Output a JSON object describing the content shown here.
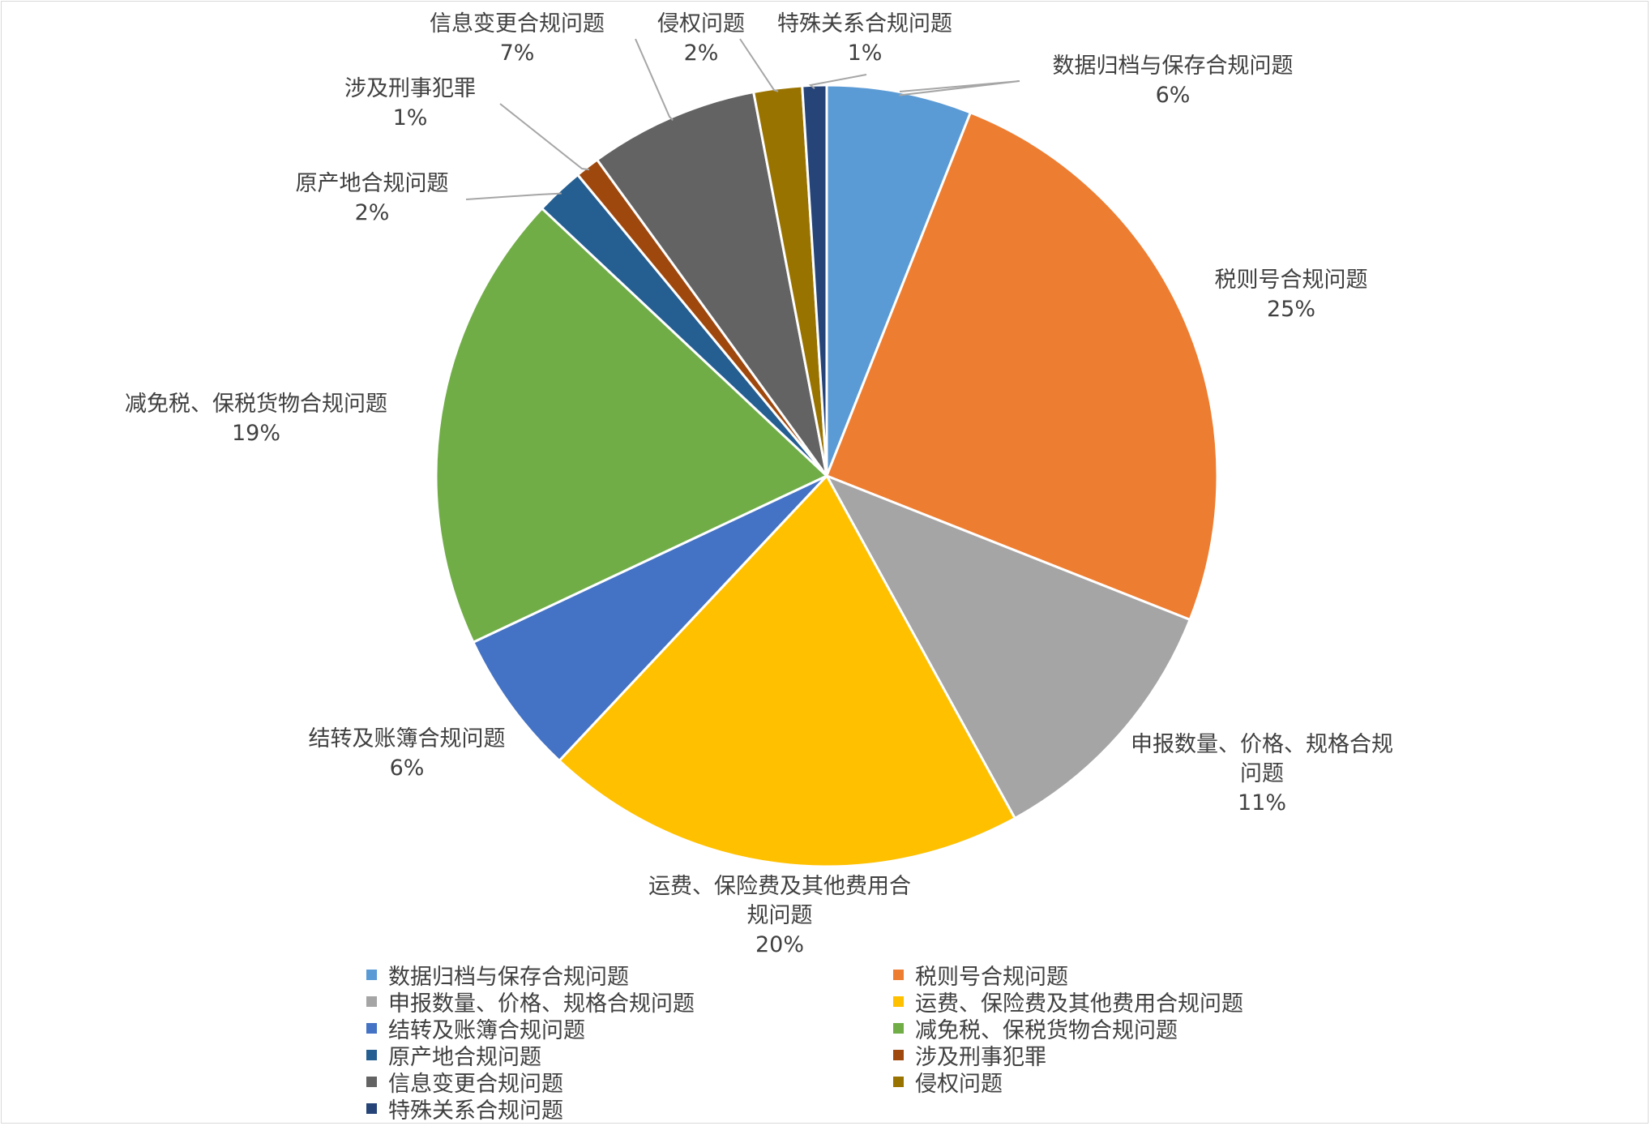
{
  "chart_data": {
    "type": "pie",
    "title": "",
    "slices": [
      {
        "name": "数据归档与保存合规问题",
        "label_lines": [
          "数据归档与保存合规问题"
        ],
        "value": 6,
        "pct_label": "6%",
        "color": "#5B9BD5"
      },
      {
        "name": "税则号合规问题",
        "label_lines": [
          "税则号合规问题"
        ],
        "value": 25,
        "pct_label": "25%",
        "color": "#ED7D31"
      },
      {
        "name": "申报数量、价格、规格合规问题",
        "label_lines": [
          "申报数量、价格、规格合规",
          "问题"
        ],
        "value": 11,
        "pct_label": "11%",
        "color": "#A5A5A5"
      },
      {
        "name": "运费、保险费及其他费用合规问题",
        "label_lines": [
          "运费、保险费及其他费用合",
          "规问题"
        ],
        "value": 20,
        "pct_label": "20%",
        "color": "#FFC000"
      },
      {
        "name": "结转及账簿合规问题",
        "label_lines": [
          "结转及账簿合规问题"
        ],
        "value": 6,
        "pct_label": "6%",
        "color": "#4472C4"
      },
      {
        "name": "减免税、保税货物合规问题",
        "label_lines": [
          "减免税、保税货物合规问题"
        ],
        "value": 19,
        "pct_label": "19%",
        "color": "#70AD47"
      },
      {
        "name": "原产地合规问题",
        "label_lines": [
          "原产地合规问题"
        ],
        "value": 2,
        "pct_label": "2%",
        "color": "#255E91"
      },
      {
        "name": "涉及刑事犯罪",
        "label_lines": [
          "涉及刑事犯罪"
        ],
        "value": 1,
        "pct_label": "1%",
        "color": "#9E480E"
      },
      {
        "name": "信息变更合规问题",
        "label_lines": [
          "信息变更合规问题"
        ],
        "value": 7,
        "pct_label": "7%",
        "color": "#636363"
      },
      {
        "name": "侵权问题",
        "label_lines": [
          "侵权问题"
        ],
        "value": 2,
        "pct_label": "2%",
        "color": "#997300"
      },
      {
        "name": "特殊关系合规问题",
        "label_lines": [
          "特殊关系合规问题"
        ],
        "value": 1,
        "pct_label": "1%",
        "color": "#264478"
      }
    ],
    "legend_position": "bottom",
    "data_labels": "outside with leader lines"
  }
}
